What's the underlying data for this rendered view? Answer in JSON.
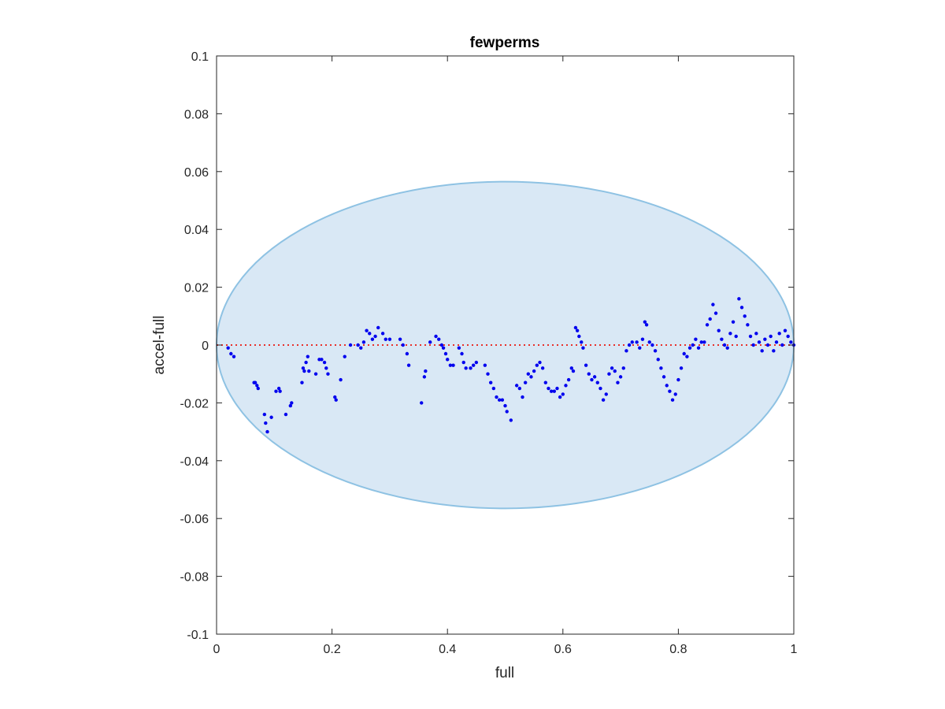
{
  "chart_data": {
    "type": "scatter",
    "title": "fewperms",
    "xlabel": "full",
    "ylabel": "accel-full",
    "xlim": [
      0,
      1
    ],
    "ylim": [
      -0.1,
      0.1
    ],
    "x_ticks": [
      0,
      0.2,
      0.4,
      0.6,
      0.8,
      1
    ],
    "x_tick_labels": [
      "0",
      "0.2",
      "0.4",
      "0.6",
      "0.8",
      "1"
    ],
    "y_ticks": [
      -0.1,
      -0.08,
      -0.06,
      -0.04,
      -0.02,
      0,
      0.02,
      0.04,
      0.06,
      0.08,
      0.1
    ],
    "y_tick_labels": [
      "-0.1",
      "-0.08",
      "-0.06",
      "-0.04",
      "-0.02",
      "0",
      "0.02",
      "0.04",
      "0.06",
      "0.08",
      "0.1"
    ],
    "grid": false,
    "legend": false,
    "ellipse": {
      "center": [
        0.5,
        0.0
      ],
      "semi_axis_x": 0.5,
      "semi_axis_y": 0.0565,
      "fill": "#d9e8f5",
      "stroke": "#8ec2e3"
    },
    "reference_line": {
      "y": 0,
      "style": "dotted",
      "color": "#e8302a"
    },
    "marker_color": "#0000ee",
    "points": [
      [
        0.02,
        -0.001
      ],
      [
        0.025,
        -0.003
      ],
      [
        0.03,
        -0.004
      ],
      [
        0.065,
        -0.013
      ],
      [
        0.067,
        -0.013
      ],
      [
        0.07,
        -0.014
      ],
      [
        0.072,
        -0.015
      ],
      [
        0.083,
        -0.024
      ],
      [
        0.085,
        -0.027
      ],
      [
        0.088,
        -0.03
      ],
      [
        0.095,
        -0.025
      ],
      [
        0.103,
        -0.016
      ],
      [
        0.108,
        -0.015
      ],
      [
        0.11,
        -0.016
      ],
      [
        0.12,
        -0.024
      ],
      [
        0.128,
        -0.021
      ],
      [
        0.13,
        -0.02
      ],
      [
        0.148,
        -0.013
      ],
      [
        0.15,
        -0.008
      ],
      [
        0.152,
        -0.009
      ],
      [
        0.155,
        -0.006
      ],
      [
        0.158,
        -0.004
      ],
      [
        0.16,
        -0.009
      ],
      [
        0.172,
        -0.01
      ],
      [
        0.178,
        -0.005
      ],
      [
        0.182,
        -0.005
      ],
      [
        0.187,
        -0.006
      ],
      [
        0.19,
        -0.008
      ],
      [
        0.193,
        -0.01
      ],
      [
        0.205,
        -0.018
      ],
      [
        0.207,
        -0.019
      ],
      [
        0.215,
        -0.012
      ],
      [
        0.222,
        -0.004
      ],
      [
        0.232,
        0.0
      ],
      [
        0.245,
        0.0
      ],
      [
        0.25,
        -0.001
      ],
      [
        0.255,
        0.001
      ],
      [
        0.26,
        0.005
      ],
      [
        0.265,
        0.004
      ],
      [
        0.27,
        0.002
      ],
      [
        0.275,
        0.003
      ],
      [
        0.28,
        0.006
      ],
      [
        0.288,
        0.004
      ],
      [
        0.293,
        0.002
      ],
      [
        0.3,
        0.002
      ],
      [
        0.318,
        0.002
      ],
      [
        0.323,
        0.0
      ],
      [
        0.33,
        -0.003
      ],
      [
        0.333,
        -0.007
      ],
      [
        0.355,
        -0.02
      ],
      [
        0.36,
        -0.011
      ],
      [
        0.362,
        -0.009
      ],
      [
        0.37,
        0.001
      ],
      [
        0.38,
        0.003
      ],
      [
        0.385,
        0.002
      ],
      [
        0.39,
        0.0
      ],
      [
        0.393,
        -0.001
      ],
      [
        0.397,
        -0.003
      ],
      [
        0.4,
        -0.005
      ],
      [
        0.405,
        -0.007
      ],
      [
        0.41,
        -0.007
      ],
      [
        0.42,
        -0.001
      ],
      [
        0.425,
        -0.003
      ],
      [
        0.428,
        -0.006
      ],
      [
        0.432,
        -0.008
      ],
      [
        0.44,
        -0.008
      ],
      [
        0.445,
        -0.007
      ],
      [
        0.45,
        -0.006
      ],
      [
        0.465,
        -0.007
      ],
      [
        0.47,
        -0.01
      ],
      [
        0.475,
        -0.013
      ],
      [
        0.48,
        -0.015
      ],
      [
        0.485,
        -0.018
      ],
      [
        0.49,
        -0.019
      ],
      [
        0.495,
        -0.019
      ],
      [
        0.5,
        -0.021
      ],
      [
        0.503,
        -0.023
      ],
      [
        0.51,
        -0.026
      ],
      [
        0.52,
        -0.014
      ],
      [
        0.525,
        -0.015
      ],
      [
        0.53,
        -0.018
      ],
      [
        0.535,
        -0.013
      ],
      [
        0.54,
        -0.01
      ],
      [
        0.545,
        -0.011
      ],
      [
        0.55,
        -0.009
      ],
      [
        0.555,
        -0.007
      ],
      [
        0.56,
        -0.006
      ],
      [
        0.565,
        -0.008
      ],
      [
        0.57,
        -0.013
      ],
      [
        0.575,
        -0.015
      ],
      [
        0.58,
        -0.016
      ],
      [
        0.585,
        -0.016
      ],
      [
        0.59,
        -0.015
      ],
      [
        0.595,
        -0.018
      ],
      [
        0.6,
        -0.017
      ],
      [
        0.605,
        -0.014
      ],
      [
        0.61,
        -0.012
      ],
      [
        0.615,
        -0.008
      ],
      [
        0.618,
        -0.009
      ],
      [
        0.622,
        0.006
      ],
      [
        0.625,
        0.005
      ],
      [
        0.628,
        0.003
      ],
      [
        0.632,
        0.001
      ],
      [
        0.635,
        -0.001
      ],
      [
        0.64,
        -0.007
      ],
      [
        0.645,
        -0.01
      ],
      [
        0.65,
        -0.012
      ],
      [
        0.655,
        -0.011
      ],
      [
        0.66,
        -0.013
      ],
      [
        0.665,
        -0.015
      ],
      [
        0.67,
        -0.019
      ],
      [
        0.675,
        -0.017
      ],
      [
        0.68,
        -0.01
      ],
      [
        0.685,
        -0.008
      ],
      [
        0.69,
        -0.009
      ],
      [
        0.695,
        -0.013
      ],
      [
        0.7,
        -0.011
      ],
      [
        0.705,
        -0.008
      ],
      [
        0.71,
        -0.002
      ],
      [
        0.715,
        0.0
      ],
      [
        0.72,
        0.001
      ],
      [
        0.728,
        0.001
      ],
      [
        0.733,
        -0.001
      ],
      [
        0.738,
        0.002
      ],
      [
        0.742,
        0.008
      ],
      [
        0.745,
        0.007
      ],
      [
        0.75,
        0.001
      ],
      [
        0.755,
        0.0
      ],
      [
        0.76,
        -0.002
      ],
      [
        0.765,
        -0.005
      ],
      [
        0.77,
        -0.008
      ],
      [
        0.775,
        -0.011
      ],
      [
        0.78,
        -0.014
      ],
      [
        0.785,
        -0.016
      ],
      [
        0.79,
        -0.019
      ],
      [
        0.795,
        -0.017
      ],
      [
        0.8,
        -0.012
      ],
      [
        0.805,
        -0.008
      ],
      [
        0.81,
        -0.003
      ],
      [
        0.815,
        -0.004
      ],
      [
        0.82,
        -0.001
      ],
      [
        0.825,
        0.0
      ],
      [
        0.83,
        0.002
      ],
      [
        0.835,
        -0.001
      ],
      [
        0.84,
        0.001
      ],
      [
        0.845,
        0.001
      ],
      [
        0.85,
        0.007
      ],
      [
        0.855,
        0.009
      ],
      [
        0.86,
        0.014
      ],
      [
        0.865,
        0.011
      ],
      [
        0.87,
        0.005
      ],
      [
        0.875,
        0.002
      ],
      [
        0.88,
        0.0
      ],
      [
        0.885,
        -0.001
      ],
      [
        0.89,
        0.004
      ],
      [
        0.895,
        0.008
      ],
      [
        0.9,
        0.003
      ],
      [
        0.905,
        0.016
      ],
      [
        0.91,
        0.013
      ],
      [
        0.915,
        0.01
      ],
      [
        0.92,
        0.007
      ],
      [
        0.925,
        0.003
      ],
      [
        0.93,
        0.0
      ],
      [
        0.935,
        0.004
      ],
      [
        0.94,
        0.001
      ],
      [
        0.945,
        -0.002
      ],
      [
        0.95,
        0.002
      ],
      [
        0.955,
        0.0
      ],
      [
        0.96,
        0.003
      ],
      [
        0.965,
        -0.002
      ],
      [
        0.97,
        0.001
      ],
      [
        0.975,
        0.004
      ],
      [
        0.98,
        0.0
      ],
      [
        0.985,
        0.005
      ],
      [
        0.99,
        0.003
      ],
      [
        0.995,
        0.001
      ],
      [
        1.0,
        0.0
      ]
    ]
  }
}
